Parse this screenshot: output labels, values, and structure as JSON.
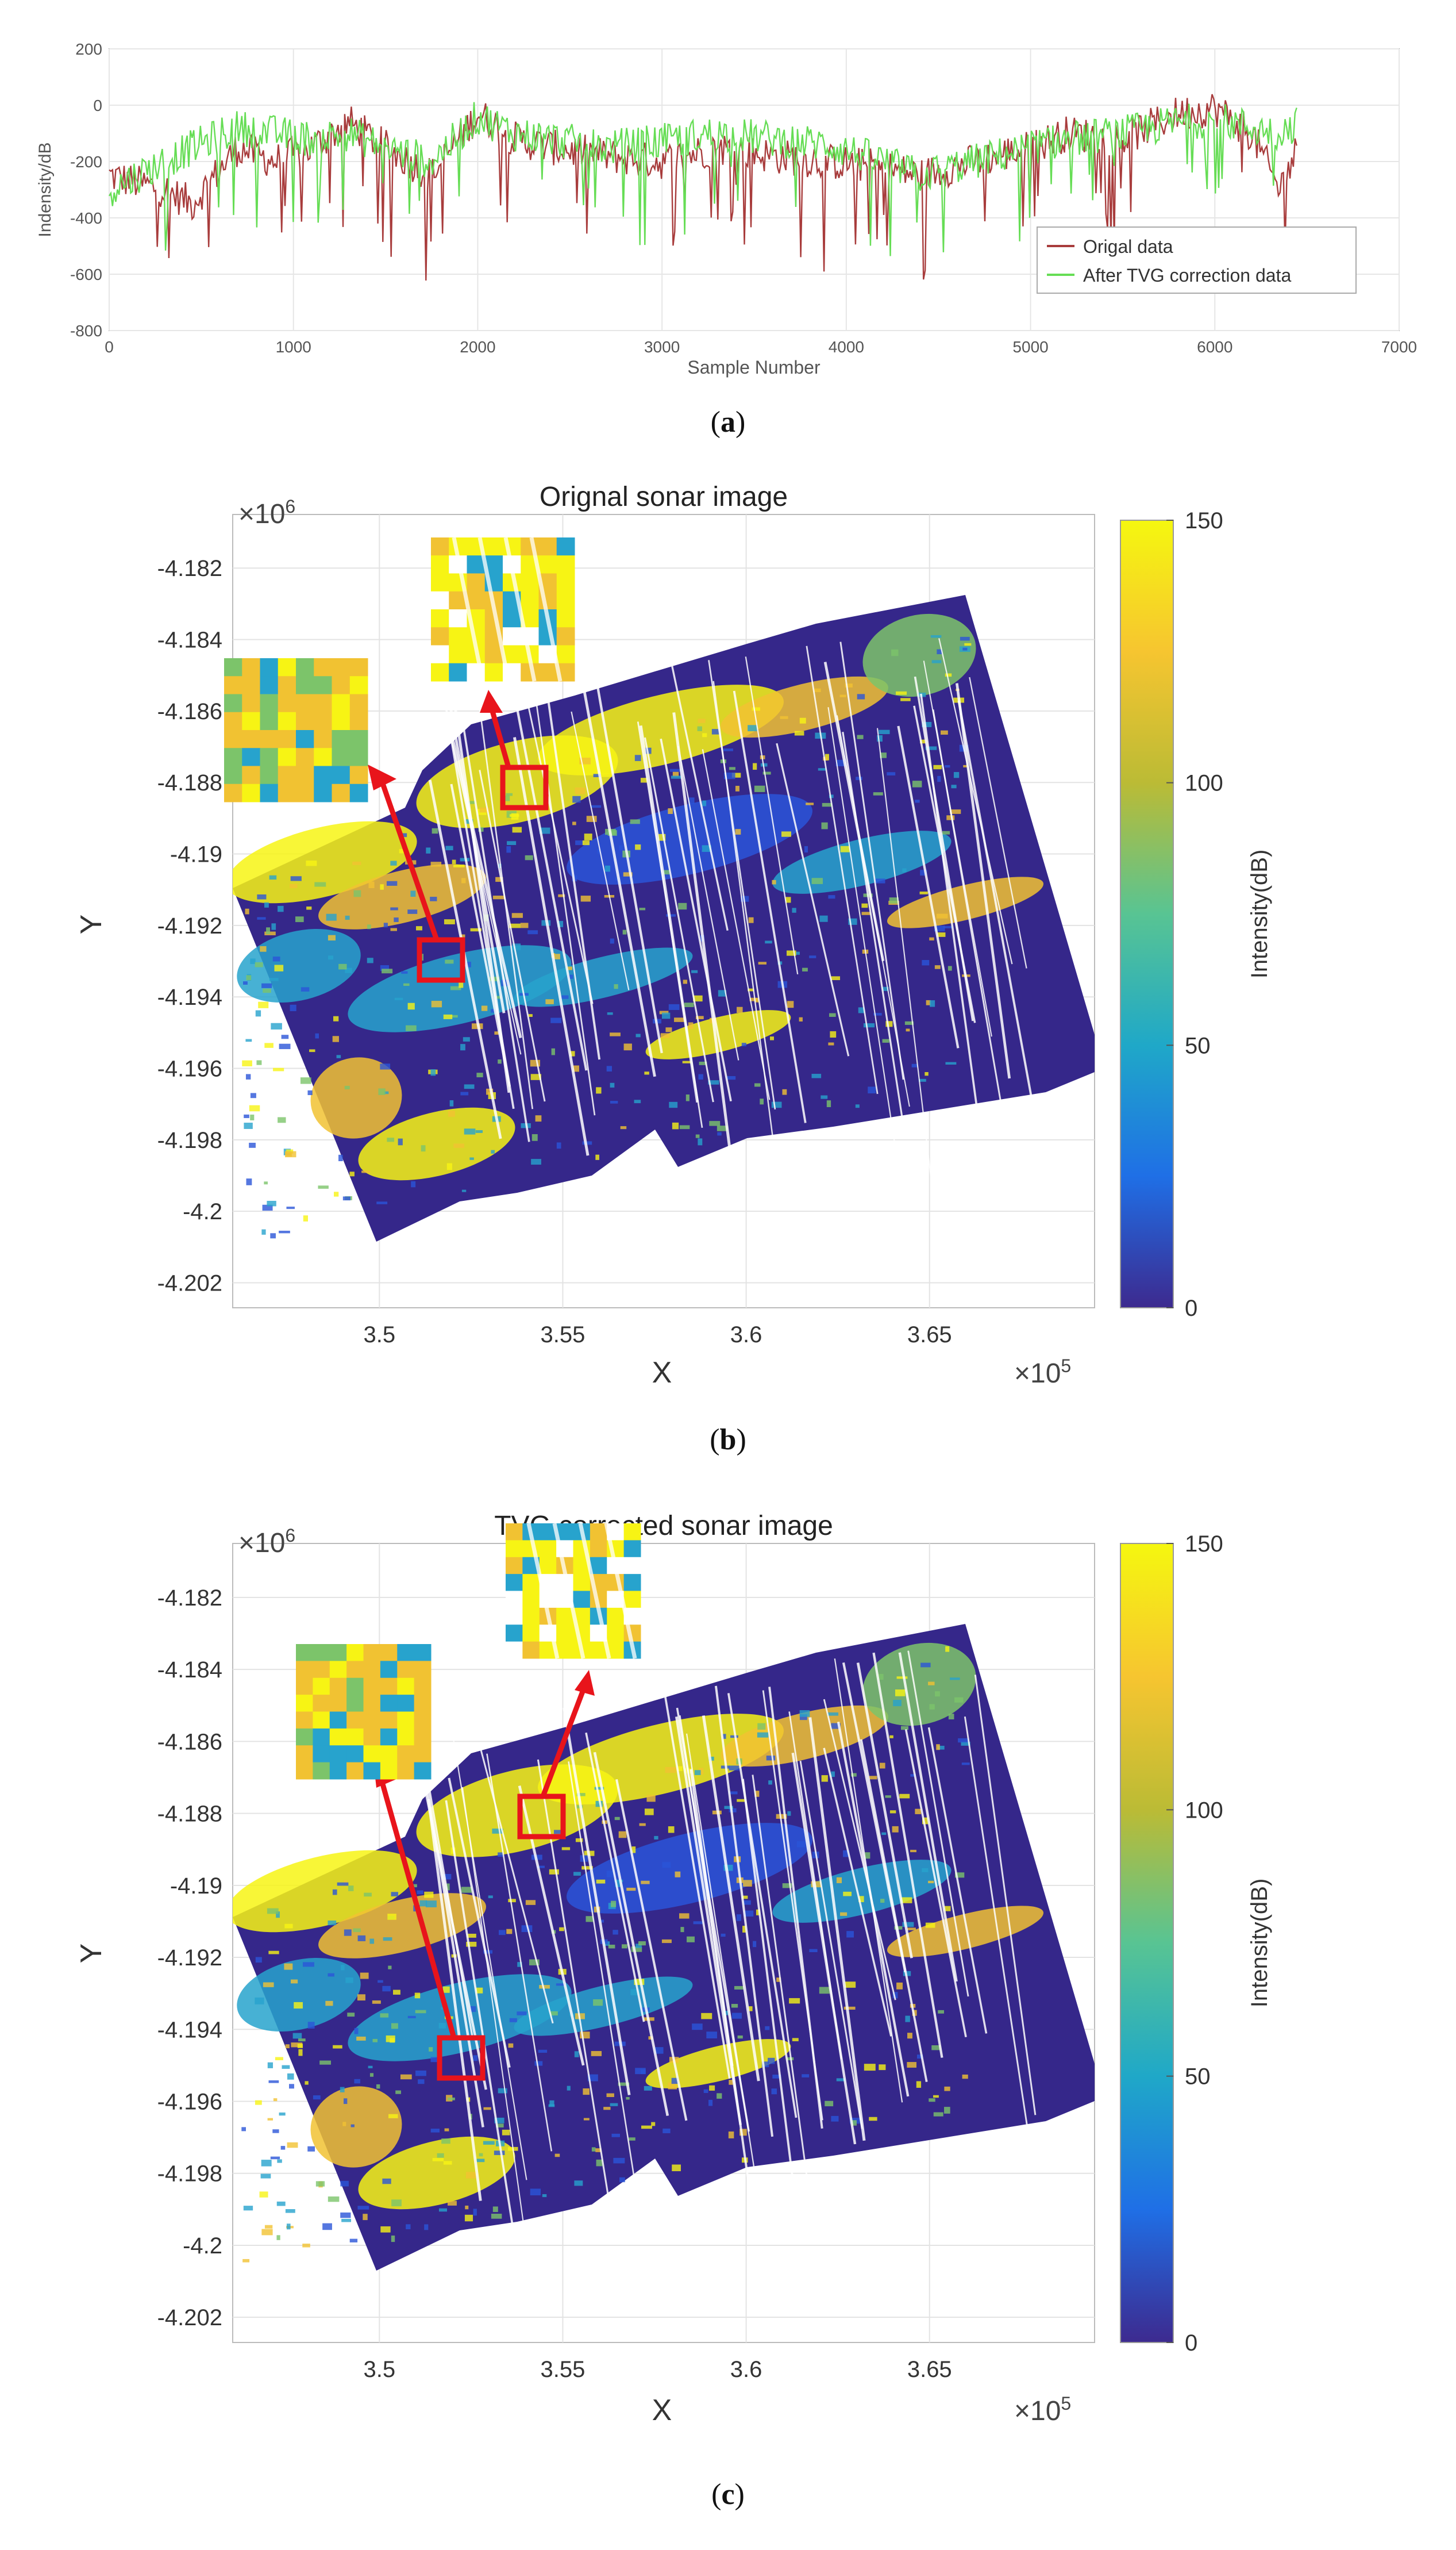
{
  "chart_data": [
    {
      "panel": "a",
      "type": "line",
      "title": "",
      "xlabel": "Sample Number",
      "ylabel": "Indensity/dB",
      "xlim": [
        0,
        7000
      ],
      "ylim": [
        -800,
        200
      ],
      "xticks": [
        "0",
        "1000",
        "2000",
        "3000",
        "4000",
        "5000",
        "6000",
        "7000"
      ],
      "yticks": [
        "200",
        "0",
        "-200",
        "-400",
        "-600",
        "-800"
      ],
      "legend_position": "bottom-right",
      "series": [
        {
          "name": "Origal data",
          "color": "#a83c3c",
          "x": [
            0,
            300,
            450,
            700,
            900,
            1100,
            1300,
            1500,
            1750,
            2000,
            2200,
            2400,
            2700,
            3000,
            3300,
            3600,
            3900,
            4200,
            4400,
            4700,
            5000,
            5200,
            5500,
            5800,
            6000,
            6200,
            6350,
            6450
          ],
          "y": [
            -250,
            -300,
            -350,
            -150,
            -200,
            -150,
            -60,
            -150,
            -250,
            -30,
            -120,
            -150,
            -180,
            -200,
            -150,
            -180,
            -200,
            -220,
            -250,
            -200,
            -150,
            -100,
            -120,
            -30,
            -10,
            -100,
            -300,
            -150
          ]
        },
        {
          "name": "After TVG correction data",
          "color": "#66dd55",
          "x": [
            0,
            300,
            450,
            700,
            900,
            1100,
            1300,
            1500,
            1750,
            2000,
            2200,
            2400,
            2700,
            3000,
            3300,
            3600,
            3900,
            4200,
            4400,
            4700,
            5000,
            5200,
            5500,
            5800,
            6000,
            6200,
            6350,
            6450
          ],
          "y": [
            -300,
            -200,
            -150,
            -80,
            -100,
            -120,
            -100,
            -150,
            -200,
            -40,
            -100,
            -120,
            -150,
            -130,
            -100,
            -120,
            -140,
            -200,
            -250,
            -200,
            -150,
            -120,
            -100,
            -60,
            -50,
            -80,
            -100,
            -60
          ]
        }
      ]
    },
    {
      "panel": "b",
      "type": "heatmap",
      "title": "Orignal sonar image",
      "xlabel": "X",
      "ylabel": "Y",
      "x_scale": "×10",
      "x_scale_exp": "5",
      "y_scale": "×10",
      "y_scale_exp": "6",
      "xlim": [
        3.46,
        3.695
      ],
      "ylim": [
        -4.2027,
        -4.1805
      ],
      "xticks": [
        "3.5",
        "3.55",
        "3.6",
        "3.65"
      ],
      "yticks": [
        "-4.182",
        "-4.184",
        "-4.186",
        "-4.188",
        "-4.19",
        "-4.192",
        "-4.194",
        "-4.196",
        "-4.198",
        "-4.2",
        "-4.202"
      ],
      "colorbar": {
        "label": "Intensity(dB)",
        "range": [
          0,
          150
        ],
        "ticks": [
          "150",
          "100",
          "50",
          "0"
        ],
        "colors": [
          "#3d2a8f",
          "#1f6fe6",
          "#1fa8c8",
          "#58c493",
          "#bbbb35",
          "#f6c530",
          "#f5f70f"
        ]
      },
      "highlight_boxes": 2
    },
    {
      "panel": "c",
      "type": "heatmap",
      "title": "TVG corrected sonar image",
      "xlabel": "X",
      "ylabel": "Y",
      "x_scale": "×10",
      "x_scale_exp": "5",
      "y_scale": "×10",
      "y_scale_exp": "6",
      "xlim": [
        3.46,
        3.695
      ],
      "ylim": [
        -4.2027,
        -4.1805
      ],
      "xticks": [
        "3.5",
        "3.55",
        "3.6",
        "3.65"
      ],
      "yticks": [
        "-4.182",
        "-4.184",
        "-4.186",
        "-4.188",
        "-4.19",
        "-4.192",
        "-4.194",
        "-4.196",
        "-4.198",
        "-4.2",
        "-4.202"
      ],
      "colorbar": {
        "label": "Intensity(dB)",
        "range": [
          0,
          150
        ],
        "ticks": [
          "150",
          "100",
          "50",
          "0"
        ],
        "colors": [
          "#3d2a8f",
          "#1f6fe6",
          "#1fa8c8",
          "#58c493",
          "#bbbb35",
          "#f6c530",
          "#f5f70f"
        ]
      },
      "highlight_boxes": 2
    }
  ],
  "captions": {
    "a": "a",
    "b": "b",
    "c": "c"
  },
  "palette": {
    "deep": "#35278a",
    "blue": "#2a55d8",
    "cyan": "#27a3cd",
    "green": "#7cc46a",
    "gold": "#f1c232",
    "yellow": "#f7f414",
    "red": "#e8141b"
  }
}
